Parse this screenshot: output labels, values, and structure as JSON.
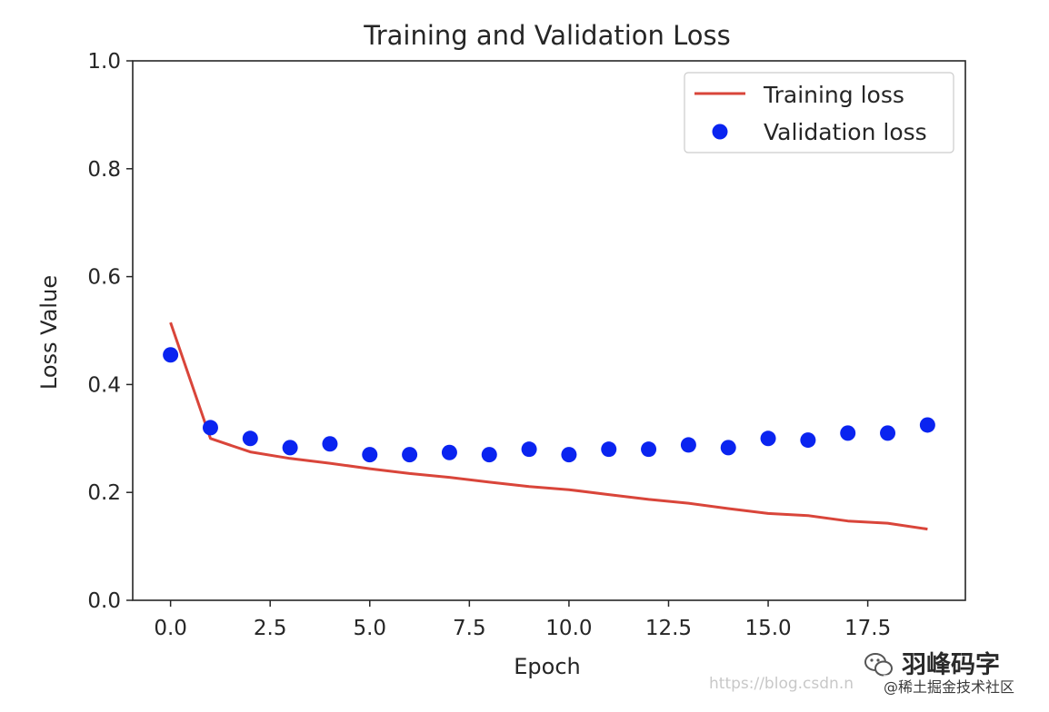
{
  "chart_data": {
    "type": "line",
    "title": "Training and Validation Loss",
    "xlabel": "Epoch",
    "ylabel": "Loss Value",
    "xlim": [
      -0.95,
      19.95
    ],
    "ylim": [
      0.0,
      1.0
    ],
    "xticks": [
      0.0,
      2.5,
      5.0,
      7.5,
      10.0,
      12.5,
      15.0,
      17.5
    ],
    "xtick_labels": [
      "0.0",
      "2.5",
      "5.0",
      "7.5",
      "10.0",
      "12.5",
      "15.0",
      "17.5"
    ],
    "yticks": [
      0.0,
      0.2,
      0.4,
      0.6,
      0.8,
      1.0
    ],
    "ytick_labels": [
      "0.0",
      "0.2",
      "0.4",
      "0.6",
      "0.8",
      "1.0"
    ],
    "grid": false,
    "legend_position": "top-right",
    "series": [
      {
        "name": "Training loss",
        "style": "line",
        "color": "#d9453a",
        "x": [
          0,
          1,
          2,
          3,
          4,
          5,
          6,
          7,
          8,
          9,
          10,
          11,
          12,
          13,
          14,
          15,
          16,
          17,
          18,
          19
        ],
        "values": [
          0.515,
          0.3,
          0.275,
          0.263,
          0.254,
          0.244,
          0.235,
          0.228,
          0.219,
          0.211,
          0.205,
          0.196,
          0.187,
          0.18,
          0.17,
          0.161,
          0.157,
          0.147,
          0.143,
          0.132
        ]
      },
      {
        "name": "Validation loss",
        "style": "points",
        "color": "#0a24f0",
        "x": [
          0,
          1,
          2,
          3,
          4,
          5,
          6,
          7,
          8,
          9,
          10,
          11,
          12,
          13,
          14,
          15,
          16,
          17,
          18,
          19
        ],
        "values": [
          0.455,
          0.32,
          0.3,
          0.283,
          0.29,
          0.27,
          0.27,
          0.274,
          0.27,
          0.28,
          0.27,
          0.28,
          0.28,
          0.288,
          0.283,
          0.3,
          0.297,
          0.31,
          0.31,
          0.325
        ]
      }
    ]
  },
  "watermark": {
    "name": "羽峰码字",
    "url": "https://blog.csdn.n",
    "community": "@稀土掘金技术社区"
  }
}
